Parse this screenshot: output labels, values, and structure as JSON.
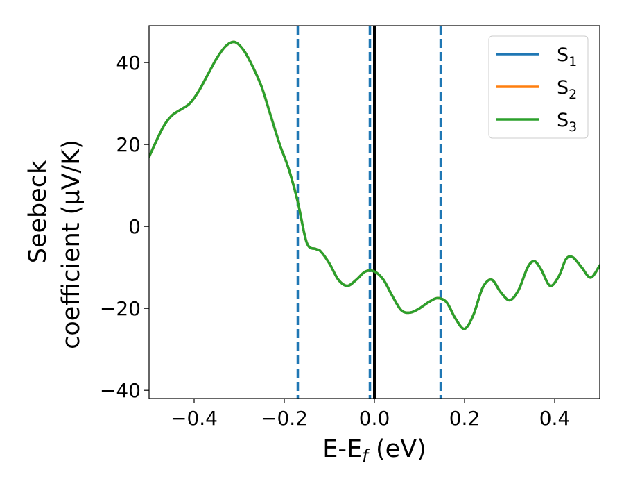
{
  "chart_data": {
    "type": "line",
    "xlabel": {
      "main": "E-E",
      "sub": "f",
      "suffix": " (eV)"
    },
    "ylabel": {
      "line1": "Seebeck",
      "line2": "coefficient  (μV/K)"
    },
    "xlim": [
      -0.5,
      0.5
    ],
    "ylim": [
      -42,
      49
    ],
    "xticks": [
      -0.4,
      -0.2,
      0.0,
      0.2,
      0.4
    ],
    "xtick_labels": [
      "−0.4",
      "−0.2",
      "0.0",
      "0.2",
      "0.4"
    ],
    "yticks": [
      -40,
      -20,
      0,
      20,
      40
    ],
    "ytick_labels": [
      "−40",
      "−20",
      "0",
      "20",
      "40"
    ],
    "grid": false,
    "legend_position": "top-right",
    "vertical_lines": [
      {
        "x": -0.17,
        "style": "dashed",
        "color": "#1f77b4"
      },
      {
        "x": -0.01,
        "style": "dashed",
        "color": "#1f77b4"
      },
      {
        "x": 0.0,
        "style": "solid",
        "color": "#000000"
      },
      {
        "x": 0.147,
        "style": "dashed",
        "color": "#1f77b4"
      }
    ],
    "x": [
      -0.5,
      -0.47,
      -0.45,
      -0.43,
      -0.41,
      -0.39,
      -0.37,
      -0.35,
      -0.33,
      -0.31,
      -0.29,
      -0.27,
      -0.25,
      -0.23,
      -0.21,
      -0.19,
      -0.17,
      -0.15,
      -0.13,
      -0.12,
      -0.1,
      -0.08,
      -0.06,
      -0.04,
      -0.02,
      0.0,
      0.02,
      0.04,
      0.06,
      0.08,
      0.1,
      0.12,
      0.14,
      0.16,
      0.18,
      0.2,
      0.22,
      0.24,
      0.26,
      0.28,
      0.3,
      0.32,
      0.34,
      0.355,
      0.37,
      0.39,
      0.41,
      0.425,
      0.44,
      0.46,
      0.48,
      0.5
    ],
    "series": [
      {
        "name": "S",
        "sub": "1",
        "color": "#1f77b4",
        "values": [
          17,
          24,
          27,
          28.5,
          30,
          33,
          37,
          41,
          44,
          45,
          43,
          39,
          34,
          27,
          20,
          14,
          6,
          -4,
          -5.5,
          -6,
          -9,
          -13,
          -14.5,
          -13,
          -11,
          -11,
          -13,
          -17,
          -20.5,
          -21,
          -20,
          -18.5,
          -17.5,
          -18.5,
          -22.5,
          -25,
          -21.5,
          -15,
          -13,
          -16,
          -18,
          -15.5,
          -10,
          -8.5,
          -10.5,
          -14.5,
          -12,
          -8,
          -7.5,
          -10,
          -12.5,
          -9.5
        ]
      },
      {
        "name": "S",
        "sub": "2",
        "color": "#ff7f0e",
        "values": [
          17,
          24,
          27,
          28.5,
          30,
          33,
          37,
          41,
          44,
          45,
          43,
          39,
          34,
          27,
          20,
          14,
          6,
          -4,
          -5.5,
          -6,
          -9,
          -13,
          -14.5,
          -13,
          -11,
          -11,
          -13,
          -17,
          -20.5,
          -21,
          -20,
          -18.5,
          -17.5,
          -18.5,
          -22.5,
          -25,
          -21.5,
          -15,
          -13,
          -16,
          -18,
          -15.5,
          -10,
          -8.5,
          -10.5,
          -14.5,
          -12,
          -8,
          -7.5,
          -10,
          -12.5,
          -9.5
        ]
      },
      {
        "name": "S",
        "sub": "3",
        "color": "#2ca02c",
        "values": [
          17,
          24,
          27,
          28.5,
          30,
          33,
          37,
          41,
          44,
          45,
          43,
          39,
          34,
          27,
          20,
          14,
          6,
          -4,
          -5.5,
          -6,
          -9,
          -13,
          -14.5,
          -13,
          -11,
          -11,
          -13,
          -17,
          -20.5,
          -21,
          -20,
          -18.5,
          -17.5,
          -18.5,
          -22.5,
          -25,
          -21.5,
          -15,
          -13,
          -16,
          -18,
          -15.5,
          -10,
          -8.5,
          -10.5,
          -14.5,
          -12,
          -8,
          -7.5,
          -10,
          -12.5,
          -9.5
        ]
      }
    ]
  }
}
